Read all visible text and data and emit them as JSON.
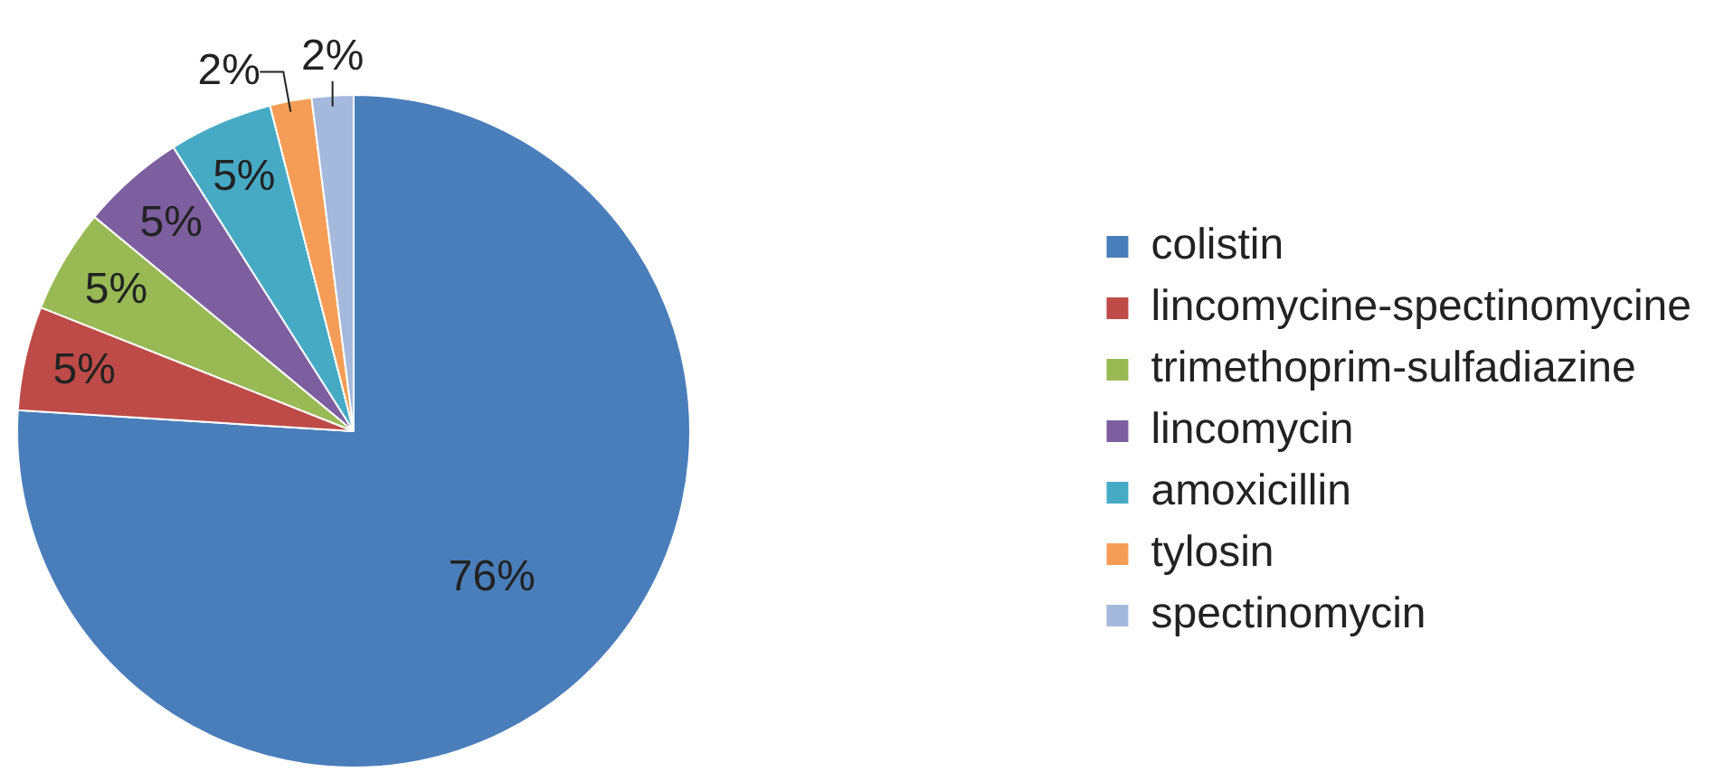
{
  "chart_data": {
    "type": "pie",
    "categories": [
      "colistin",
      "lincomycine-spectinomycine",
      "trimethoprim-sulfadiazine",
      "lincomycin",
      "amoxicillin",
      "tylosin",
      "spectinomycin"
    ],
    "values": [
      76,
      5,
      5,
      5,
      5,
      2,
      2
    ],
    "colors": [
      "#4a7ebb",
      "#be4b48",
      "#98b954",
      "#7d5fa0",
      "#46aac5",
      "#f59d56",
      "#a5b9dc"
    ],
    "value_labels": [
      "76%",
      "5%",
      "5%",
      "5%",
      "5%",
      "2%",
      "2%"
    ],
    "legend": "right"
  }
}
